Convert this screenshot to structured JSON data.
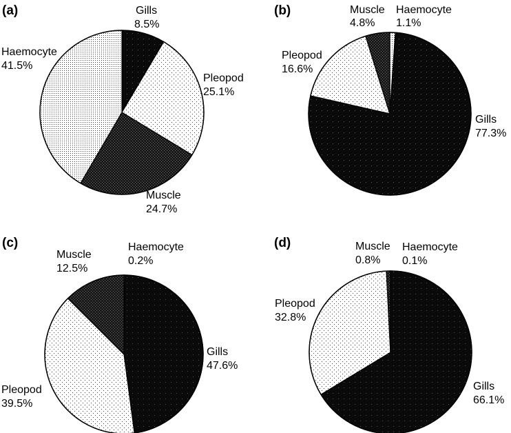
{
  "chart_data": [
    {
      "panel": "(a)",
      "type": "pie",
      "slices": [
        {
          "label": "Gills",
          "value": 8.5,
          "value_label": "8.5%",
          "pattern": "dark"
        },
        {
          "label": "Pleopod",
          "value": 25.1,
          "value_label": "25.1%",
          "pattern": "light"
        },
        {
          "label": "Muscle",
          "value": 24.7,
          "value_label": "24.7%",
          "pattern": "medium"
        },
        {
          "label": "Haemocyte",
          "value": 41.5,
          "value_label": "41.5%",
          "pattern": "dense"
        }
      ]
    },
    {
      "panel": "(b)",
      "type": "pie",
      "slices": [
        {
          "label": "Haemocyte",
          "value": 1.1,
          "value_label": "1.1%",
          "pattern": "dense"
        },
        {
          "label": "Gills",
          "value": 77.3,
          "value_label": "77.3%",
          "pattern": "dark"
        },
        {
          "label": "Pleopod",
          "value": 16.6,
          "value_label": "16.6%",
          "pattern": "light"
        },
        {
          "label": "Muscle",
          "value": 4.8,
          "value_label": "4.8%",
          "pattern": "medium"
        }
      ]
    },
    {
      "panel": "(c)",
      "type": "pie",
      "slices": [
        {
          "label": "Haemocyte",
          "value": 0.2,
          "value_label": "0.2%",
          "pattern": "dense"
        },
        {
          "label": "Gills",
          "value": 47.6,
          "value_label": "47.6%",
          "pattern": "dark"
        },
        {
          "label": "Pleopod",
          "value": 39.5,
          "value_label": "39.5%",
          "pattern": "light"
        },
        {
          "label": "Muscle",
          "value": 12.5,
          "value_label": "12.5%",
          "pattern": "medium"
        }
      ]
    },
    {
      "panel": "(d)",
      "type": "pie",
      "slices": [
        {
          "label": "Haemocyte",
          "value": 0.1,
          "value_label": "0.1%",
          "pattern": "dense"
        },
        {
          "label": "Gills",
          "value": 66.1,
          "value_label": "66.1%",
          "pattern": "dark"
        },
        {
          "label": "Pleopod",
          "value": 32.8,
          "value_label": "32.8%",
          "pattern": "light"
        },
        {
          "label": "Muscle",
          "value": 0.8,
          "value_label": "0.8%",
          "pattern": "medium"
        }
      ]
    }
  ]
}
